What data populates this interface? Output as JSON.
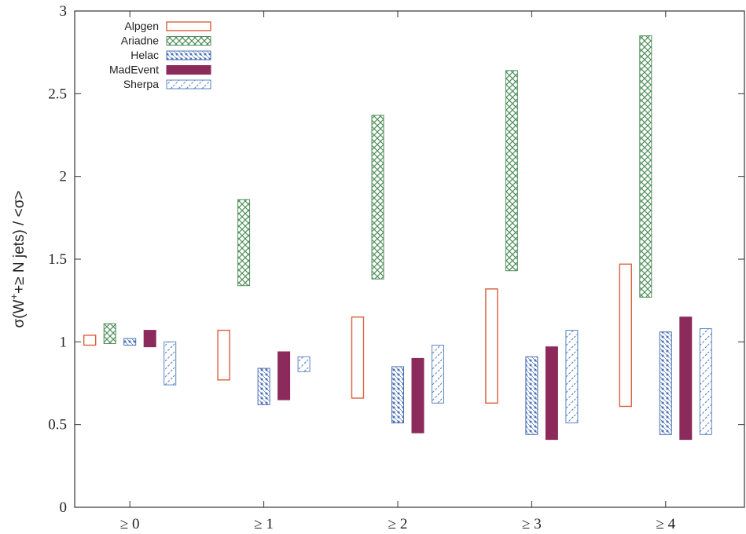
{
  "chart_data": {
    "type": "bar",
    "subtype": "floating-range",
    "ylabel_parts": [
      "σ(W",
      "+",
      "+≥ N jets) / <σ>"
    ],
    "categories": [
      "≥ 0",
      "≥ 1",
      "≥ 2",
      "≥ 3",
      "≥ 4"
    ],
    "ylim": [
      0,
      3
    ],
    "yticks": [
      "0",
      "0.5",
      "1",
      "1.5",
      "2",
      "2.5",
      "3"
    ],
    "legend_position": "top-left",
    "grid": false,
    "series": [
      {
        "name": "Alpgen",
        "color": "#d9603b",
        "pattern": "outline",
        "ranges": [
          [
            0.98,
            1.04
          ],
          [
            0.77,
            1.07
          ],
          [
            0.66,
            1.15
          ],
          [
            0.63,
            1.32
          ],
          [
            0.61,
            1.47
          ]
        ]
      },
      {
        "name": "Ariadne",
        "color": "#4f8f5a",
        "pattern": "cross",
        "ranges": [
          [
            0.99,
            1.11
          ],
          [
            1.34,
            1.86
          ],
          [
            1.38,
            2.37
          ],
          [
            1.43,
            2.64
          ],
          [
            1.27,
            2.85
          ]
        ]
      },
      {
        "name": "Helac",
        "color": "#4a6fb5",
        "pattern": "dots",
        "ranges": [
          [
            0.98,
            1.02
          ],
          [
            0.62,
            0.84
          ],
          [
            0.51,
            0.85
          ],
          [
            0.44,
            0.91
          ],
          [
            0.44,
            1.06
          ]
        ]
      },
      {
        "name": "MadEvent",
        "color": "#8b2a5b",
        "pattern": "solid",
        "ranges": [
          [
            0.97,
            1.07
          ],
          [
            0.65,
            0.94
          ],
          [
            0.45,
            0.9
          ],
          [
            0.41,
            0.97
          ],
          [
            0.41,
            1.15
          ]
        ]
      },
      {
        "name": "Sherpa",
        "color": "#5b86c4",
        "pattern": "dashes",
        "ranges": [
          [
            0.74,
            1.0
          ],
          [
            0.82,
            0.91
          ],
          [
            0.63,
            0.98
          ],
          [
            0.51,
            1.07
          ],
          [
            0.44,
            1.08
          ]
        ]
      }
    ]
  }
}
